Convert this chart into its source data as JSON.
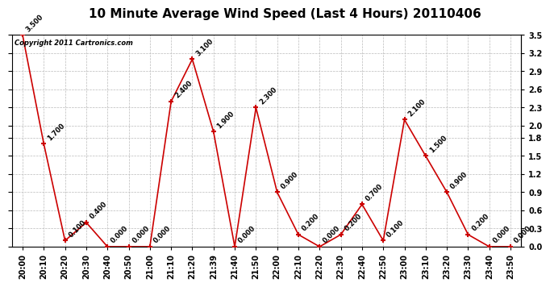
{
  "title": "10 Minute Average Wind Speed (Last 4 Hours) 20110406",
  "copyright": "Copyright 2011 Cartronics.com",
  "x_labels": [
    "20:00",
    "20:10",
    "20:20",
    "20:30",
    "20:40",
    "20:50",
    "21:00",
    "21:10",
    "21:20",
    "21:39",
    "21:40",
    "21:50",
    "22:00",
    "22:10",
    "22:20",
    "22:30",
    "22:40",
    "22:50",
    "23:00",
    "23:10",
    "23:20",
    "23:30",
    "23:40",
    "23:50"
  ],
  "y_values": [
    3.5,
    1.7,
    0.1,
    0.4,
    0.0,
    0.0,
    0.0,
    2.4,
    3.1,
    1.9,
    0.0,
    2.3,
    0.9,
    0.2,
    0.0,
    0.2,
    0.7,
    0.1,
    2.1,
    1.5,
    0.9,
    0.2,
    0.0,
    0.0
  ],
  "y_values_labels": [
    "3.500",
    "1.700",
    "0.100",
    "0.400",
    "0.000",
    "0.000",
    "0.000",
    "2.400",
    "3.100",
    "1.900",
    "0.000",
    "2.300",
    "0.900",
    "0.200",
    "0.000",
    "0.200",
    "0.700",
    "0.100",
    "2.100",
    "1.500",
    "0.900",
    "0.200",
    "0.000",
    "0.000"
  ],
  "line_color": "#cc0000",
  "marker_color": "#cc0000",
  "background_color": "#ffffff",
  "grid_color": "#bbbbbb",
  "ylim": [
    0.0,
    3.5
  ],
  "yticks": [
    0.0,
    0.3,
    0.6,
    0.9,
    1.2,
    1.5,
    1.8,
    2.0,
    2.3,
    2.6,
    2.9,
    3.2,
    3.5
  ],
  "title_fontsize": 11,
  "annotation_fontsize": 6,
  "copyright_fontsize": 6,
  "tick_fontsize": 7,
  "ylabel_fontsize": 7
}
